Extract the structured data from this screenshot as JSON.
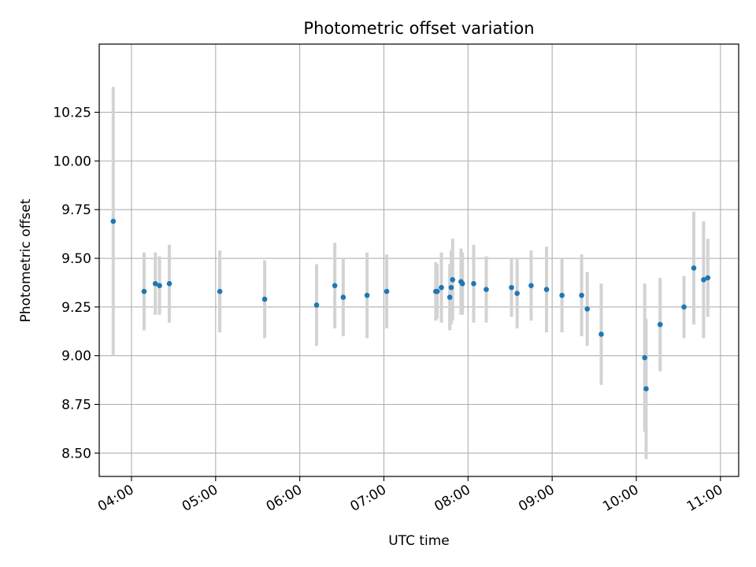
{
  "chart_data": {
    "type": "scatter",
    "title": "Photometric offset variation",
    "xlabel": "UTC time",
    "ylabel": "Photometric offset",
    "xlim": [
      "03:37",
      "11:13"
    ],
    "ylim": [
      8.38,
      10.6
    ],
    "x_ticks": [
      "04:00",
      "05:00",
      "06:00",
      "07:00",
      "08:00",
      "09:00",
      "10:00",
      "11:00"
    ],
    "y_ticks": [
      8.5,
      8.75,
      9.0,
      9.25,
      9.5,
      9.75,
      10.0,
      10.25
    ],
    "grid": true,
    "colors": {
      "point": "#1f77b4",
      "errorbar": "#d3d3d3",
      "grid": "#b0b0b0"
    },
    "points": [
      {
        "time": "03:47",
        "offset": 9.69,
        "err": 0.69
      },
      {
        "time": "04:09",
        "offset": 9.33,
        "err": 0.2
      },
      {
        "time": "04:17",
        "offset": 9.37,
        "err": 0.16
      },
      {
        "time": "04:20",
        "offset": 9.36,
        "err": 0.15
      },
      {
        "time": "04:27",
        "offset": 9.37,
        "err": 0.2
      },
      {
        "time": "05:03",
        "offset": 9.33,
        "err": 0.21
      },
      {
        "time": "05:35",
        "offset": 9.29,
        "err": 0.2
      },
      {
        "time": "06:12",
        "offset": 9.26,
        "err": 0.21
      },
      {
        "time": "06:25",
        "offset": 9.36,
        "err": 0.22
      },
      {
        "time": "06:31",
        "offset": 9.3,
        "err": 0.2
      },
      {
        "time": "06:48",
        "offset": 9.31,
        "err": 0.22
      },
      {
        "time": "07:02",
        "offset": 9.33,
        "err": 0.19
      },
      {
        "time": "07:37",
        "offset": 9.33,
        "err": 0.15
      },
      {
        "time": "07:38",
        "offset": 9.33,
        "err": 0.14
      },
      {
        "time": "07:41",
        "offset": 9.35,
        "err": 0.18
      },
      {
        "time": "07:47",
        "offset": 9.3,
        "err": 0.17
      },
      {
        "time": "07:48",
        "offset": 9.35,
        "err": 0.19
      },
      {
        "time": "07:49",
        "offset": 9.39,
        "err": 0.21
      },
      {
        "time": "07:55",
        "offset": 9.38,
        "err": 0.17
      },
      {
        "time": "07:56",
        "offset": 9.37,
        "err": 0.16
      },
      {
        "time": "08:04",
        "offset": 9.37,
        "err": 0.2
      },
      {
        "time": "08:13",
        "offset": 9.34,
        "err": 0.17
      },
      {
        "time": "08:31",
        "offset": 9.35,
        "err": 0.15
      },
      {
        "time": "08:35",
        "offset": 9.32,
        "err": 0.18
      },
      {
        "time": "08:45",
        "offset": 9.36,
        "err": 0.18
      },
      {
        "time": "08:56",
        "offset": 9.34,
        "err": 0.22
      },
      {
        "time": "09:07",
        "offset": 9.31,
        "err": 0.19
      },
      {
        "time": "09:21",
        "offset": 9.31,
        "err": 0.21
      },
      {
        "time": "09:25",
        "offset": 9.24,
        "err": 0.19
      },
      {
        "time": "09:35",
        "offset": 9.11,
        "err": 0.26
      },
      {
        "time": "10:06",
        "offset": 8.99,
        "err": 0.38
      },
      {
        "time": "10:07",
        "offset": 8.83,
        "err": 0.36
      },
      {
        "time": "10:17",
        "offset": 9.16,
        "err": 0.24
      },
      {
        "time": "10:34",
        "offset": 9.25,
        "err": 0.16
      },
      {
        "time": "10:41",
        "offset": 9.45,
        "err": 0.29
      },
      {
        "time": "10:48",
        "offset": 9.39,
        "err": 0.3
      },
      {
        "time": "10:51",
        "offset": 9.4,
        "err": 0.2
      }
    ]
  }
}
